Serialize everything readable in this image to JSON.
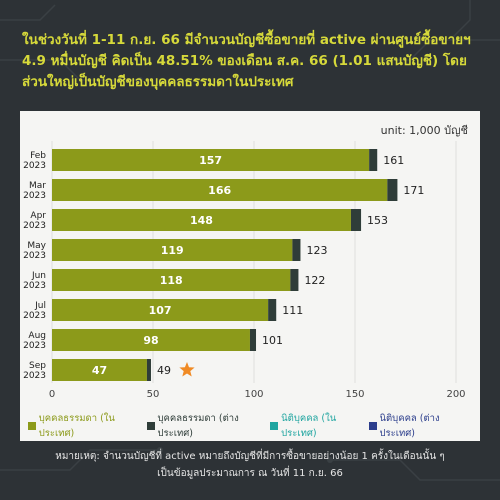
{
  "header": {
    "title": "ในช่วงวันที่ 1-11 ก.ย. 66 มีจำนวนบัญชีซื้อขายที่ active ผ่านศูนย์ซื้อขายฯ 4.9 หมื่นบัญชี คิดเป็น 48.51% ของเดือน ส.ค. 66 (1.01 แสนบัญชี) โดยส่วนใหญ่เป็นบัญชีของบุคคลธรรมดาในประเทศ"
  },
  "unit_label": "unit: 1,000 บัญชี",
  "chart_data": {
    "type": "bar",
    "orientation": "horizontal",
    "stacked": true,
    "categories": [
      [
        "Feb",
        "2023"
      ],
      [
        "Mar",
        "2023"
      ],
      [
        "Apr",
        "2023"
      ],
      [
        "May",
        "2023"
      ],
      [
        "Jun",
        "2023"
      ],
      [
        "Jul",
        "2023"
      ],
      [
        "Aug",
        "2023"
      ],
      [
        "Sep",
        "2023"
      ]
    ],
    "series": [
      {
        "name": "บุคคลธรรมดา (ในประเทศ)",
        "color": "#8c9a1a",
        "values": [
          157,
          166,
          148,
          119,
          118,
          107,
          98,
          47
        ]
      },
      {
        "name": "บุคคลธรรมดา (ต่างประเทศ)",
        "color": "#2f3d39",
        "values": [
          4,
          5,
          5,
          4,
          4,
          4,
          3,
          2
        ]
      },
      {
        "name": "นิติบุคคล (ในประเทศ)",
        "color": "#1fa5a0",
        "values": [
          0,
          0,
          0,
          0,
          0,
          0,
          0,
          0
        ]
      },
      {
        "name": "นิติบุคคล (ต่างประเทศ)",
        "color": "#2c3e8c",
        "values": [
          0,
          0,
          0,
          0,
          0,
          0,
          0,
          0
        ]
      }
    ],
    "inner_labels": [
      157,
      166,
      148,
      119,
      118,
      107,
      98,
      47
    ],
    "total_labels": [
      161,
      171,
      153,
      123,
      122,
      111,
      101,
      49
    ],
    "highlight_category": "Sep",
    "highlight_marker": "star",
    "highlight_color": "#f08a24",
    "xlim": [
      0,
      200
    ],
    "xticks": [
      0,
      50,
      100,
      150,
      200
    ],
    "grid": true,
    "legend_position": "bottom"
  },
  "footnote": {
    "line1": "หมายเหตุ: จำนวนบัญชีที่ active หมายถึงบัญชีที่มีการซื้อขายอย่างน้อย 1 ครั้งในเดือนนั้น ๆ",
    "line2": "เป็นข้อมูลประมาณการ ณ วันที่ 11 ก.ย. 66"
  }
}
